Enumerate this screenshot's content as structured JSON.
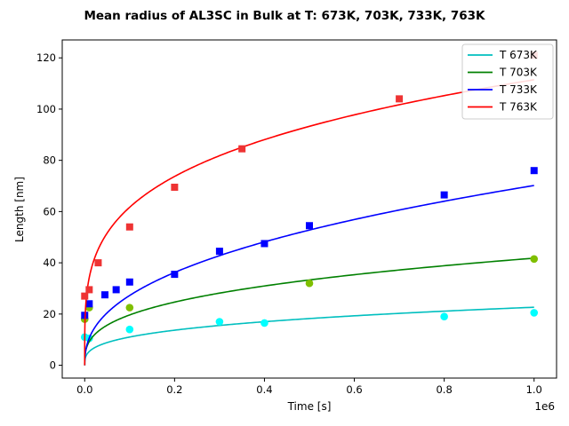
{
  "chart_data": {
    "type": "scatter+line",
    "title": "Mean radius of AL3SC in Bulk at T: 673K, 703K, 733K, 763K",
    "xlabel": "Time [s]",
    "ylabel": "Length [nm]",
    "x_offset_label": "1e6",
    "xlim": [
      -50000,
      1050000
    ],
    "ylim": [
      -5,
      127
    ],
    "x_ticks": [
      0,
      200000,
      400000,
      600000,
      800000,
      1000000
    ],
    "x_tick_labels": [
      "0.0",
      "0.2",
      "0.4",
      "0.6",
      "0.8",
      "1.0"
    ],
    "y_ticks": [
      0,
      20,
      40,
      60,
      80,
      100,
      120
    ],
    "y_tick_labels": [
      "0",
      "20",
      "40",
      "60",
      "80",
      "100",
      "120"
    ],
    "grid": false,
    "legend_position": "top-right",
    "series": [
      {
        "name": "T 673K",
        "line_color": "#00bfbf",
        "marker_color": "#00ffff",
        "marker": "circle",
        "fit": {
          "a": 0.3,
          "b": 0.313
        },
        "points": [
          [
            0,
            11
          ],
          [
            10000,
            10.5
          ],
          [
            100000,
            14
          ],
          [
            300000,
            17
          ],
          [
            400000,
            16.5
          ],
          [
            800000,
            19
          ],
          [
            1000000,
            20.5
          ]
        ]
      },
      {
        "name": "T 703K",
        "line_color": "#008000",
        "marker_color": "#7fbf00",
        "marker": "circle",
        "fit": {
          "a": 0.45,
          "b": 0.328
        },
        "points": [
          [
            0,
            18
          ],
          [
            10000,
            22.5
          ],
          [
            100000,
            22.5
          ],
          [
            500000,
            32
          ],
          [
            1000000,
            41.5
          ]
        ]
      },
      {
        "name": "T 733K",
        "line_color": "#0000ff",
        "marker_color": "#0000ff",
        "marker": "square",
        "fit": {
          "a": 0.24,
          "b": 0.411
        },
        "points": [
          [
            0,
            19.5
          ],
          [
            10000,
            24
          ],
          [
            45000,
            27.5
          ],
          [
            70000,
            29.5
          ],
          [
            100000,
            32.5
          ],
          [
            200000,
            35.5
          ],
          [
            300000,
            44.5
          ],
          [
            400000,
            47.5
          ],
          [
            500000,
            54.5
          ],
          [
            800000,
            66.5
          ],
          [
            1000000,
            76
          ]
        ]
      },
      {
        "name": "T 763K",
        "line_color": "#ff0000",
        "marker_color": "#ee3333",
        "marker": "square",
        "fit": {
          "a": 3.2,
          "b": 0.257
        },
        "points": [
          [
            0,
            27
          ],
          [
            10000,
            29.5
          ],
          [
            30000,
            40
          ],
          [
            100000,
            54
          ],
          [
            200000,
            69.5
          ],
          [
            350000,
            84.5
          ],
          [
            700000,
            104
          ],
          [
            1000000,
            121
          ]
        ]
      }
    ]
  }
}
